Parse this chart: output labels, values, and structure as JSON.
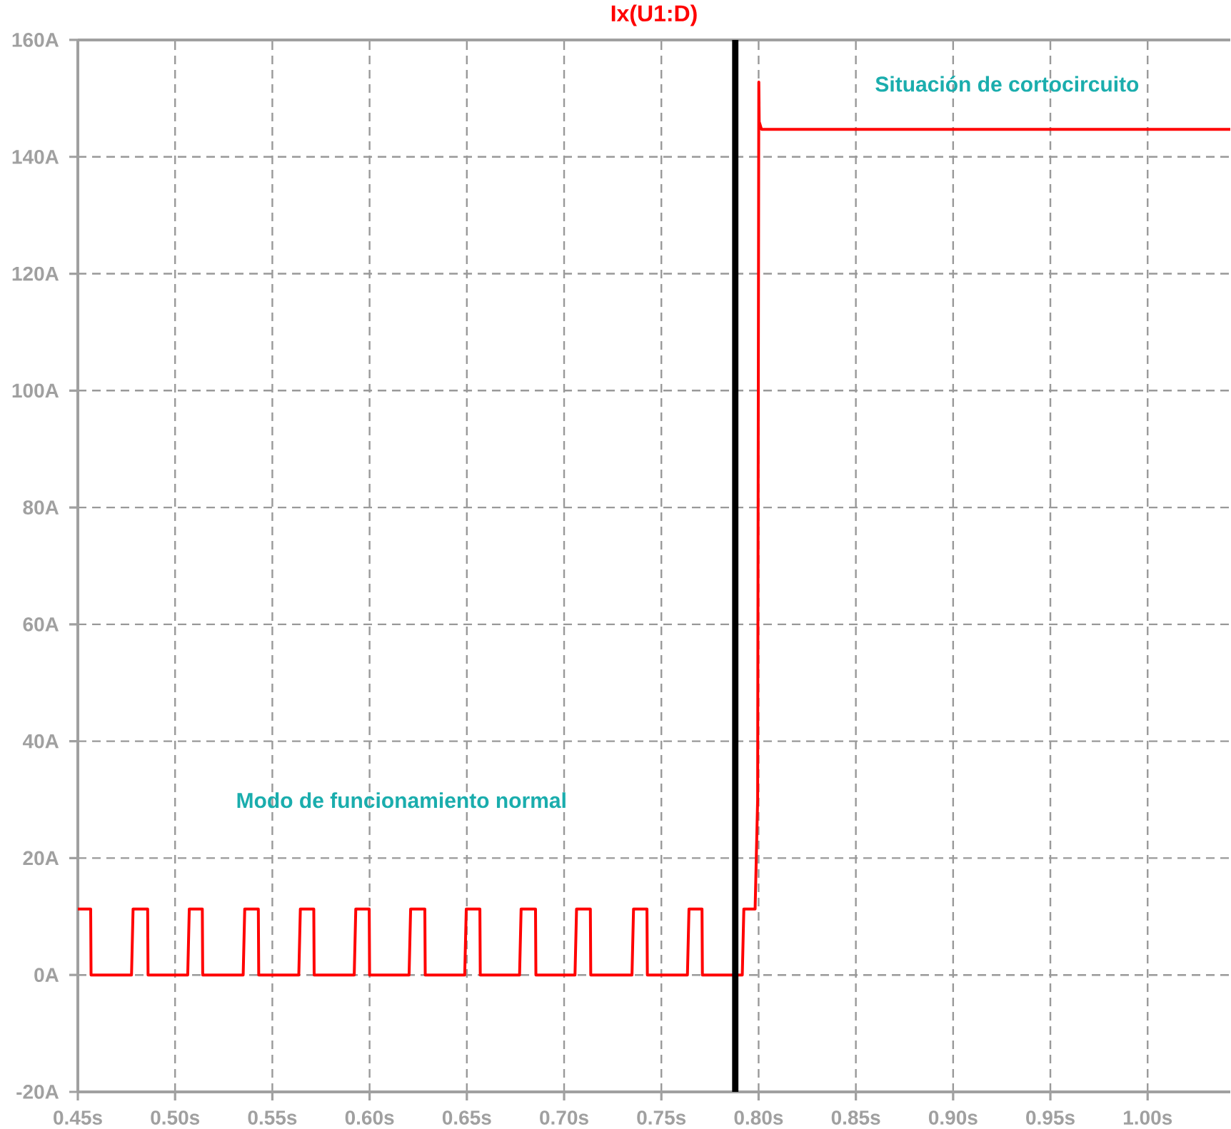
{
  "chart_data": {
    "type": "line",
    "x": [
      0.45,
      0.4566,
      0.4568,
      0.4776,
      0.4784,
      0.4859,
      0.4861,
      0.5065,
      0.5073,
      0.514,
      0.5142,
      0.535,
      0.5358,
      0.5428,
      0.543,
      0.5636,
      0.5644,
      0.5713,
      0.5715,
      0.5921,
      0.5929,
      0.5998,
      0.6,
      0.6203,
      0.6211,
      0.6284,
      0.6286,
      0.6489,
      0.6497,
      0.6567,
      0.6569,
      0.6771,
      0.6779,
      0.6853,
      0.6855,
      0.7056,
      0.7064,
      0.7135,
      0.7137,
      0.7349,
      0.7357,
      0.7426,
      0.7428,
      0.7634,
      0.7642,
      0.7709,
      0.7711,
      0.7916,
      0.7924,
      0.7982,
      0.7995,
      0.8001,
      0.8003,
      0.8015,
      1.0425
    ],
    "series": [
      {
        "name": "Ix(U1:D)",
        "color": "#ff0000",
        "values": [
          11.3,
          11.3,
          0,
          0,
          11.3,
          11.3,
          0,
          0,
          11.3,
          11.3,
          0,
          0,
          11.3,
          11.3,
          0,
          0,
          11.3,
          11.3,
          0,
          0,
          11.3,
          11.3,
          0,
          0,
          11.3,
          11.3,
          0,
          0,
          11.3,
          11.3,
          0,
          0,
          11.3,
          11.3,
          0,
          0,
          11.3,
          11.3,
          0,
          0,
          11.3,
          11.3,
          0,
          0,
          11.3,
          11.3,
          0,
          0,
          11.3,
          11.3,
          30,
          152.8,
          146,
          144.7,
          144.7
        ]
      }
    ],
    "xlim": [
      0.45,
      1.0425
    ],
    "ylim": [
      -20,
      160
    ],
    "xticks": [
      {
        "value": 0.45,
        "label": "0.45s"
      },
      {
        "value": 0.5,
        "label": "0.50s"
      },
      {
        "value": 0.55,
        "label": "0.55s"
      },
      {
        "value": 0.6,
        "label": "0.60s"
      },
      {
        "value": 0.65,
        "label": "0.65s"
      },
      {
        "value": 0.7,
        "label": "0.70s"
      },
      {
        "value": 0.75,
        "label": "0.75s"
      },
      {
        "value": 0.8,
        "label": "0.80s"
      },
      {
        "value": 0.85,
        "label": "0.85s"
      },
      {
        "value": 0.9,
        "label": "0.90s"
      },
      {
        "value": 0.95,
        "label": "0.95s"
      },
      {
        "value": 1.0,
        "label": "1.00s"
      }
    ],
    "yticks": [
      {
        "value": -20,
        "label": "-20A"
      },
      {
        "value": 0,
        "label": "0A"
      },
      {
        "value": 20,
        "label": "20A"
      },
      {
        "value": 40,
        "label": "40A"
      },
      {
        "value": 60,
        "label": "60A"
      },
      {
        "value": 80,
        "label": "80A"
      },
      {
        "value": 100,
        "label": "100A"
      },
      {
        "value": 120,
        "label": "120A"
      },
      {
        "value": 140,
        "label": "140A"
      },
      {
        "value": 160,
        "label": "160A"
      }
    ],
    "grid": true,
    "legend": "top",
    "line_style": "solid",
    "ref_lines": [
      {
        "axis": "x",
        "value": 0.788,
        "color": "#000000"
      }
    ],
    "annotations": [
      "Modo de funcionamiento normal",
      "Situación de cortocircuito"
    ]
  }
}
